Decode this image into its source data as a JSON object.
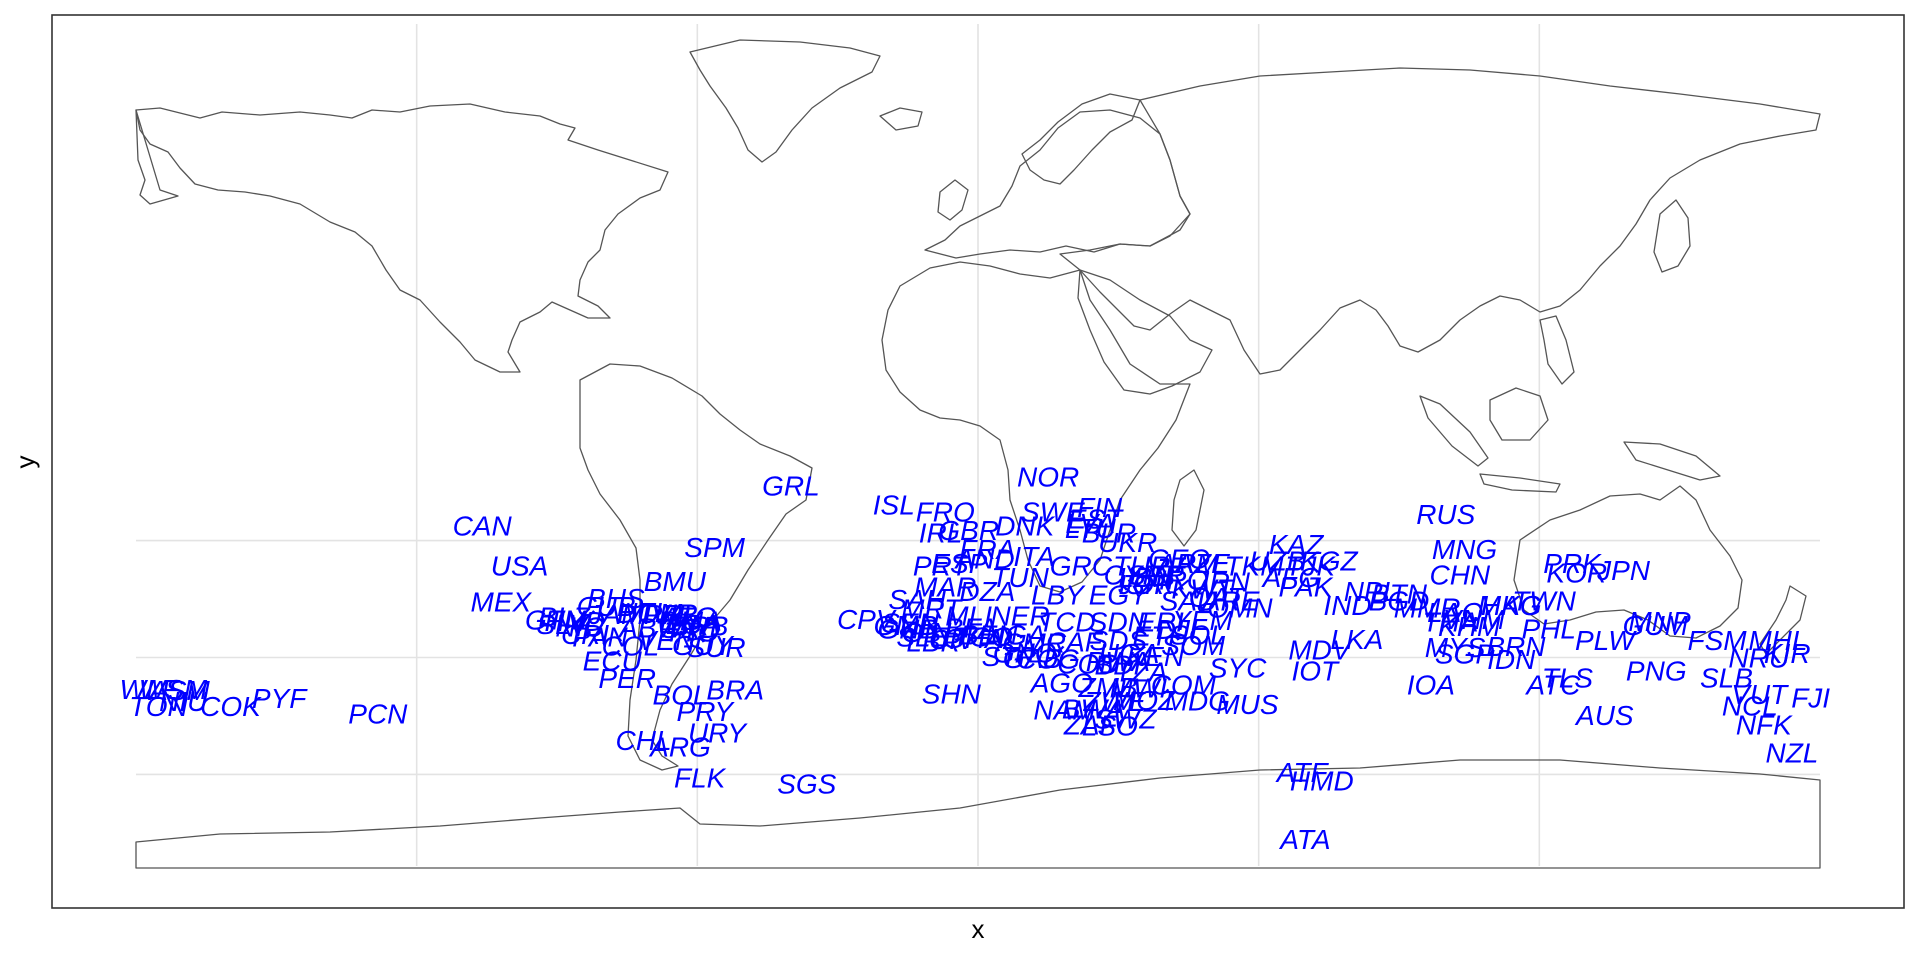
{
  "chart_data": {
    "type": "map",
    "title": "",
    "xlabel": "x",
    "ylabel": "y",
    "grid": true,
    "labels": [
      {
        "text": "NOR",
        "x": 15,
        "y": 77
      },
      {
        "text": "GRL",
        "x": -40,
        "y": 73
      },
      {
        "text": "ISL",
        "x": -18,
        "y": 65
      },
      {
        "text": "FRO",
        "x": -7,
        "y": 62
      },
      {
        "text": "FIN",
        "x": 26,
        "y": 64
      },
      {
        "text": "SWE",
        "x": 16,
        "y": 62
      },
      {
        "text": "EST",
        "x": 25,
        "y": 59
      },
      {
        "text": "LVA",
        "x": 24,
        "y": 57
      },
      {
        "text": "LTU",
        "x": 24,
        "y": 55
      },
      {
        "text": "DNK",
        "x": 10,
        "y": 56
      },
      {
        "text": "BLR",
        "x": 28,
        "y": 53
      },
      {
        "text": "IRL",
        "x": -8,
        "y": 53
      },
      {
        "text": "GBR",
        "x": -2,
        "y": 54
      },
      {
        "text": "UKR",
        "x": 32,
        "y": 49
      },
      {
        "text": "FRA",
        "x": 2,
        "y": 46
      },
      {
        "text": "ESP",
        "x": -4,
        "y": 40
      },
      {
        "text": "PRT",
        "x": -8,
        "y": 39
      },
      {
        "text": "AND",
        "x": 1.5,
        "y": 42
      },
      {
        "text": "ITA",
        "x": 12,
        "y": 43
      },
      {
        "text": "GRC",
        "x": 22,
        "y": 39
      },
      {
        "text": "TUR",
        "x": 35,
        "y": 39
      },
      {
        "text": "CYP",
        "x": 33,
        "y": 35
      },
      {
        "text": "GEO",
        "x": 43,
        "y": 42
      },
      {
        "text": "ARM",
        "x": 45,
        "y": 40
      },
      {
        "text": "AZE",
        "x": 48,
        "y": 40
      },
      {
        "text": "TKM",
        "x": 59,
        "y": 39
      },
      {
        "text": "UZB",
        "x": 64,
        "y": 41
      },
      {
        "text": "KGZ",
        "x": 75,
        "y": 41
      },
      {
        "text": "TJK",
        "x": 71,
        "y": 39
      },
      {
        "text": "KAZ",
        "x": 68,
        "y": 48
      },
      {
        "text": "RUS",
        "x": 100,
        "y": 61
      },
      {
        "text": "MNG",
        "x": 104,
        "y": 46
      },
      {
        "text": "CHN",
        "x": 103,
        "y": 35
      },
      {
        "text": "PRK",
        "x": 127,
        "y": 40
      },
      {
        "text": "KOR",
        "x": 128,
        "y": 36
      },
      {
        "text": "JPN",
        "x": 138,
        "y": 37
      },
      {
        "text": "SYR",
        "x": 38,
        "y": 35
      },
      {
        "text": "LBN",
        "x": 35.8,
        "y": 33.9
      },
      {
        "text": "IRQ",
        "x": 44,
        "y": 33
      },
      {
        "text": "IRN",
        "x": 53,
        "y": 32
      },
      {
        "text": "ISR",
        "x": 35,
        "y": 31
      },
      {
        "text": "JOR",
        "x": 36,
        "y": 31
      },
      {
        "text": "KWT",
        "x": 48,
        "y": 29
      },
      {
        "text": "AFG",
        "x": 67,
        "y": 34
      },
      {
        "text": "PAK",
        "x": 70,
        "y": 30
      },
      {
        "text": "NPL",
        "x": 84,
        "y": 28
      },
      {
        "text": "BTN",
        "x": 90,
        "y": 27
      },
      {
        "text": "IND",
        "x": 79,
        "y": 22
      },
      {
        "text": "BGD",
        "x": 90,
        "y": 24
      },
      {
        "text": "MMR",
        "x": 96,
        "y": 21
      },
      {
        "text": "LAO",
        "x": 102,
        "y": 19
      },
      {
        "text": "THA",
        "x": 101,
        "y": 15
      },
      {
        "text": "KHM",
        "x": 105,
        "y": 13
      },
      {
        "text": "VNM",
        "x": 106,
        "y": 16
      },
      {
        "text": "HKG",
        "x": 114,
        "y": 22
      },
      {
        "text": "MAC",
        "x": 113.5,
        "y": 22
      },
      {
        "text": "TWN",
        "x": 121,
        "y": 24
      },
      {
        "text": "PHL",
        "x": 122,
        "y": 12
      },
      {
        "text": "PLW",
        "x": 134,
        "y": 7
      },
      {
        "text": "MYS",
        "x": 102,
        "y": 4
      },
      {
        "text": "BRN",
        "x": 115,
        "y": 4.5
      },
      {
        "text": "SGP",
        "x": 104,
        "y": 1.3
      },
      {
        "text": "IDN",
        "x": 114,
        "y": -1
      },
      {
        "text": "TLS",
        "x": 126,
        "y": -9
      },
      {
        "text": "ATC",
        "x": 123,
        "y": -12
      },
      {
        "text": "PNG",
        "x": 145,
        "y": -6
      },
      {
        "text": "SLB",
        "x": 160,
        "y": -9
      },
      {
        "text": "AUS",
        "x": 134,
        "y": -25
      },
      {
        "text": "MNP",
        "x": 145.7,
        "y": 15.2
      },
      {
        "text": "GUM",
        "x": 144.8,
        "y": 13.4
      },
      {
        "text": "FSM",
        "x": 158,
        "y": 7
      },
      {
        "text": "MHL",
        "x": 171,
        "y": 7
      },
      {
        "text": "NRU",
        "x": 166.9,
        "y": -0.5
      },
      {
        "text": "KIR",
        "x": 173,
        "y": 1.5
      },
      {
        "text": "VUT",
        "x": 167,
        "y": -16
      },
      {
        "text": "FJI",
        "x": 178,
        "y": -17.5
      },
      {
        "text": "NCL",
        "x": 165,
        "y": -21
      },
      {
        "text": "NFK",
        "x": 168,
        "y": -29
      },
      {
        "text": "NZL",
        "x": 174,
        "y": -41
      },
      {
        "text": "IOA",
        "x": 96.8,
        "y": -12
      },
      {
        "text": "IOT",
        "x": 72,
        "y": -6
      },
      {
        "text": "MDV",
        "x": 73,
        "y": 3
      },
      {
        "text": "LKA",
        "x": 81,
        "y": 7.5
      },
      {
        "text": "OMN",
        "x": 56,
        "y": 21
      },
      {
        "text": "ARE",
        "x": 54,
        "y": 24
      },
      {
        "text": "QAT",
        "x": 51,
        "y": 25.5
      },
      {
        "text": "SAU",
        "x": 45,
        "y": 24
      },
      {
        "text": "YEM",
        "x": 48,
        "y": 15.5
      },
      {
        "text": "SOL",
        "x": 47,
        "y": 9.5
      },
      {
        "text": "DJI",
        "x": 42.5,
        "y": 11.8
      },
      {
        "text": "SOM",
        "x": 46,
        "y": 5
      },
      {
        "text": "ETH",
        "x": 39,
        "y": 9
      },
      {
        "text": "ERI",
        "x": 39,
        "y": 15
      },
      {
        "text": "SDN",
        "x": 30,
        "y": 15
      },
      {
        "text": "SDS",
        "x": 30,
        "y": 7
      },
      {
        "text": "EGY",
        "x": 30,
        "y": 26.5
      },
      {
        "text": "LBY",
        "x": 17,
        "y": 26.5
      },
      {
        "text": "TUN",
        "x": 9,
        "y": 34
      },
      {
        "text": "DZA",
        "x": 2,
        "y": 28
      },
      {
        "text": "MAR",
        "x": -7,
        "y": 30
      },
      {
        "text": "SAH",
        "x": -13,
        "y": 24.5
      },
      {
        "text": "MRT",
        "x": -10,
        "y": 20.5
      },
      {
        "text": "MLI",
        "x": -2,
        "y": 17.5
      },
      {
        "text": "NER",
        "x": 9,
        "y": 17.5
      },
      {
        "text": "TCD",
        "x": 19,
        "y": 15
      },
      {
        "text": "CPV",
        "x": -24,
        "y": 16
      },
      {
        "text": "SEN",
        "x": -14.5,
        "y": 14.5
      },
      {
        "text": "GMB",
        "x": -15.5,
        "y": 13.4
      },
      {
        "text": "GNB",
        "x": -15,
        "y": 12
      },
      {
        "text": "GIN",
        "x": -11,
        "y": 10.5
      },
      {
        "text": "SLE",
        "x": -11.8,
        "y": 8.5
      },
      {
        "text": "LBR",
        "x": -9.5,
        "y": 6.5
      },
      {
        "text": "CIV",
        "x": -5.5,
        "y": 7.5
      },
      {
        "text": "BFA",
        "x": -1.5,
        "y": 12.3
      },
      {
        "text": "GHA",
        "x": -1,
        "y": 8
      },
      {
        "text": "TGO",
        "x": 1,
        "y": 8.5
      },
      {
        "text": "BEN",
        "x": 2.3,
        "y": 9.5
      },
      {
        "text": "NGA",
        "x": 8,
        "y": 9.5
      },
      {
        "text": "CMR",
        "x": 12,
        "y": 6
      },
      {
        "text": "CAF",
        "x": 20.5,
        "y": 6.5
      },
      {
        "text": "GNQ",
        "x": 10,
        "y": 1.6
      },
      {
        "text": "STP",
        "x": 6.6,
        "y": 0.2
      },
      {
        "text": "GAB",
        "x": 11.6,
        "y": -0.6
      },
      {
        "text": "COG",
        "x": 15,
        "y": -0.8
      },
      {
        "text": "COD",
        "x": 23.6,
        "y": -2.9
      },
      {
        "text": "UGA",
        "x": 32.3,
        "y": 1.4
      },
      {
        "text": "KEN",
        "x": 37.9,
        "y": 0.2
      },
      {
        "text": "RWA",
        "x": 29.9,
        "y": -2
      },
      {
        "text": "BDI",
        "x": 29.9,
        "y": -3.4
      },
      {
        "text": "TZA",
        "x": 34.9,
        "y": -6.4
      },
      {
        "text": "AGO",
        "x": 17.9,
        "y": -11.2
      },
      {
        "text": "ZMB",
        "x": 27.8,
        "y": -13.1
      },
      {
        "text": "MWI",
        "x": 34.3,
        "y": -13.3
      },
      {
        "text": "MOZ",
        "x": 35.5,
        "y": -18.7
      },
      {
        "text": "ZWE",
        "x": 29.2,
        "y": -19
      },
      {
        "text": "BWA",
        "x": 24.7,
        "y": -22.3
      },
      {
        "text": "NAM",
        "x": 18.5,
        "y": -22.6
      },
      {
        "text": "ZAF",
        "x": 24,
        "y": -29
      },
      {
        "text": "SWZ",
        "x": 31.5,
        "y": -26.5
      },
      {
        "text": "LSO",
        "x": 28.2,
        "y": -29.6
      },
      {
        "text": "MDG",
        "x": 46.9,
        "y": -18.8
      },
      {
        "text": "COM",
        "x": 43.9,
        "y": -11.9
      },
      {
        "text": "MUS",
        "x": 57.6,
        "y": -20.3
      },
      {
        "text": "SYC",
        "x": 55.5,
        "y": -4.7
      },
      {
        "text": "SHN",
        "x": -5.7,
        "y": -15.9
      },
      {
        "text": "CAN",
        "x": -106,
        "y": 56
      },
      {
        "text": "USA",
        "x": -98,
        "y": 39
      },
      {
        "text": "MEX",
        "x": -102,
        "y": 23.6
      },
      {
        "text": "BMU",
        "x": -64.8,
        "y": 32.3
      },
      {
        "text": "SPM",
        "x": -56.3,
        "y": 46.9
      },
      {
        "text": "BHS",
        "x": -77.4,
        "y": 25
      },
      {
        "text": "CUB",
        "x": -79.5,
        "y": 21.5
      },
      {
        "text": "JAM",
        "x": -77.3,
        "y": 18.1
      },
      {
        "text": "HTI",
        "x": -72.3,
        "y": 19
      },
      {
        "text": "DOM",
        "x": -70.2,
        "y": 18.7
      },
      {
        "text": "PRI",
        "x": -66.5,
        "y": 18.2
      },
      {
        "text": "VIR",
        "x": -64.9,
        "y": 18.3
      },
      {
        "text": "ATG",
        "x": -61.8,
        "y": 17.1
      },
      {
        "text": "DMA",
        "x": -61.4,
        "y": 15.4
      },
      {
        "text": "LCA",
        "x": -60.9,
        "y": 13.9
      },
      {
        "text": "BRB",
        "x": -59.5,
        "y": 13.2
      },
      {
        "text": "GRD",
        "x": -61.6,
        "y": 12.1
      },
      {
        "text": "TTO",
        "x": -61.2,
        "y": 10.7
      },
      {
        "text": "ABW",
        "x": -69.9,
        "y": 12.5
      },
      {
        "text": "GTM",
        "x": -90.2,
        "y": 15.8
      },
      {
        "text": "BLZ",
        "x": -88.5,
        "y": 17.2
      },
      {
        "text": "SLV",
        "x": -88.9,
        "y": 13.8
      },
      {
        "text": "HND",
        "x": -86.2,
        "y": 15.2
      },
      {
        "text": "NIC",
        "x": -85.2,
        "y": 12.9
      },
      {
        "text": "CRI",
        "x": -84,
        "y": 9.7
      },
      {
        "text": "PAN",
        "x": -80.8,
        "y": 8.5
      },
      {
        "text": "COL",
        "x": -74.3,
        "y": 4.6
      },
      {
        "text": "VEN",
        "x": -66.6,
        "y": 7
      },
      {
        "text": "GUY",
        "x": -58.9,
        "y": 4.9
      },
      {
        "text": "SUR",
        "x": -56,
        "y": 4
      },
      {
        "text": "ECU",
        "x": -78.2,
        "y": -1.8
      },
      {
        "text": "PER",
        "x": -75,
        "y": -9.2
      },
      {
        "text": "BOL",
        "x": -63.6,
        "y": -16.3
      },
      {
        "text": "BRA",
        "x": -51.9,
        "y": -14.2
      },
      {
        "text": "PRY",
        "x": -58.4,
        "y": -23.4
      },
      {
        "text": "URY",
        "x": -55.8,
        "y": -32.5
      },
      {
        "text": "CHL",
        "x": -71.5,
        "y": -35.7
      },
      {
        "text": "ARG",
        "x": -63.6,
        "y": -38.4
      },
      {
        "text": "FLK",
        "x": -59.5,
        "y": -51.8
      },
      {
        "text": "SGS",
        "x": -36.6,
        "y": -54.4
      },
      {
        "text": "ATF",
        "x": 69.3,
        "y": -49.3
      },
      {
        "text": "HMD",
        "x": 73.5,
        "y": -53.1
      },
      {
        "text": "ATA",
        "x": 70,
        "y": -78
      },
      {
        "text": "PYF",
        "x": -149.4,
        "y": -17.7
      },
      {
        "text": "PCN",
        "x": -128.3,
        "y": -24.4
      },
      {
        "text": "COK",
        "x": -159.8,
        "y": -21.2
      },
      {
        "text": "WSM",
        "x": -172.1,
        "y": -13.8
      },
      {
        "text": "ASM",
        "x": -170.7,
        "y": -14.3
      },
      {
        "text": "NIU",
        "x": -169.9,
        "y": -19.1
      },
      {
        "text": "TON",
        "x": -175.2,
        "y": -21.2
      },
      {
        "text": "WLF",
        "x": -177.2,
        "y": -13.8
      }
    ]
  }
}
